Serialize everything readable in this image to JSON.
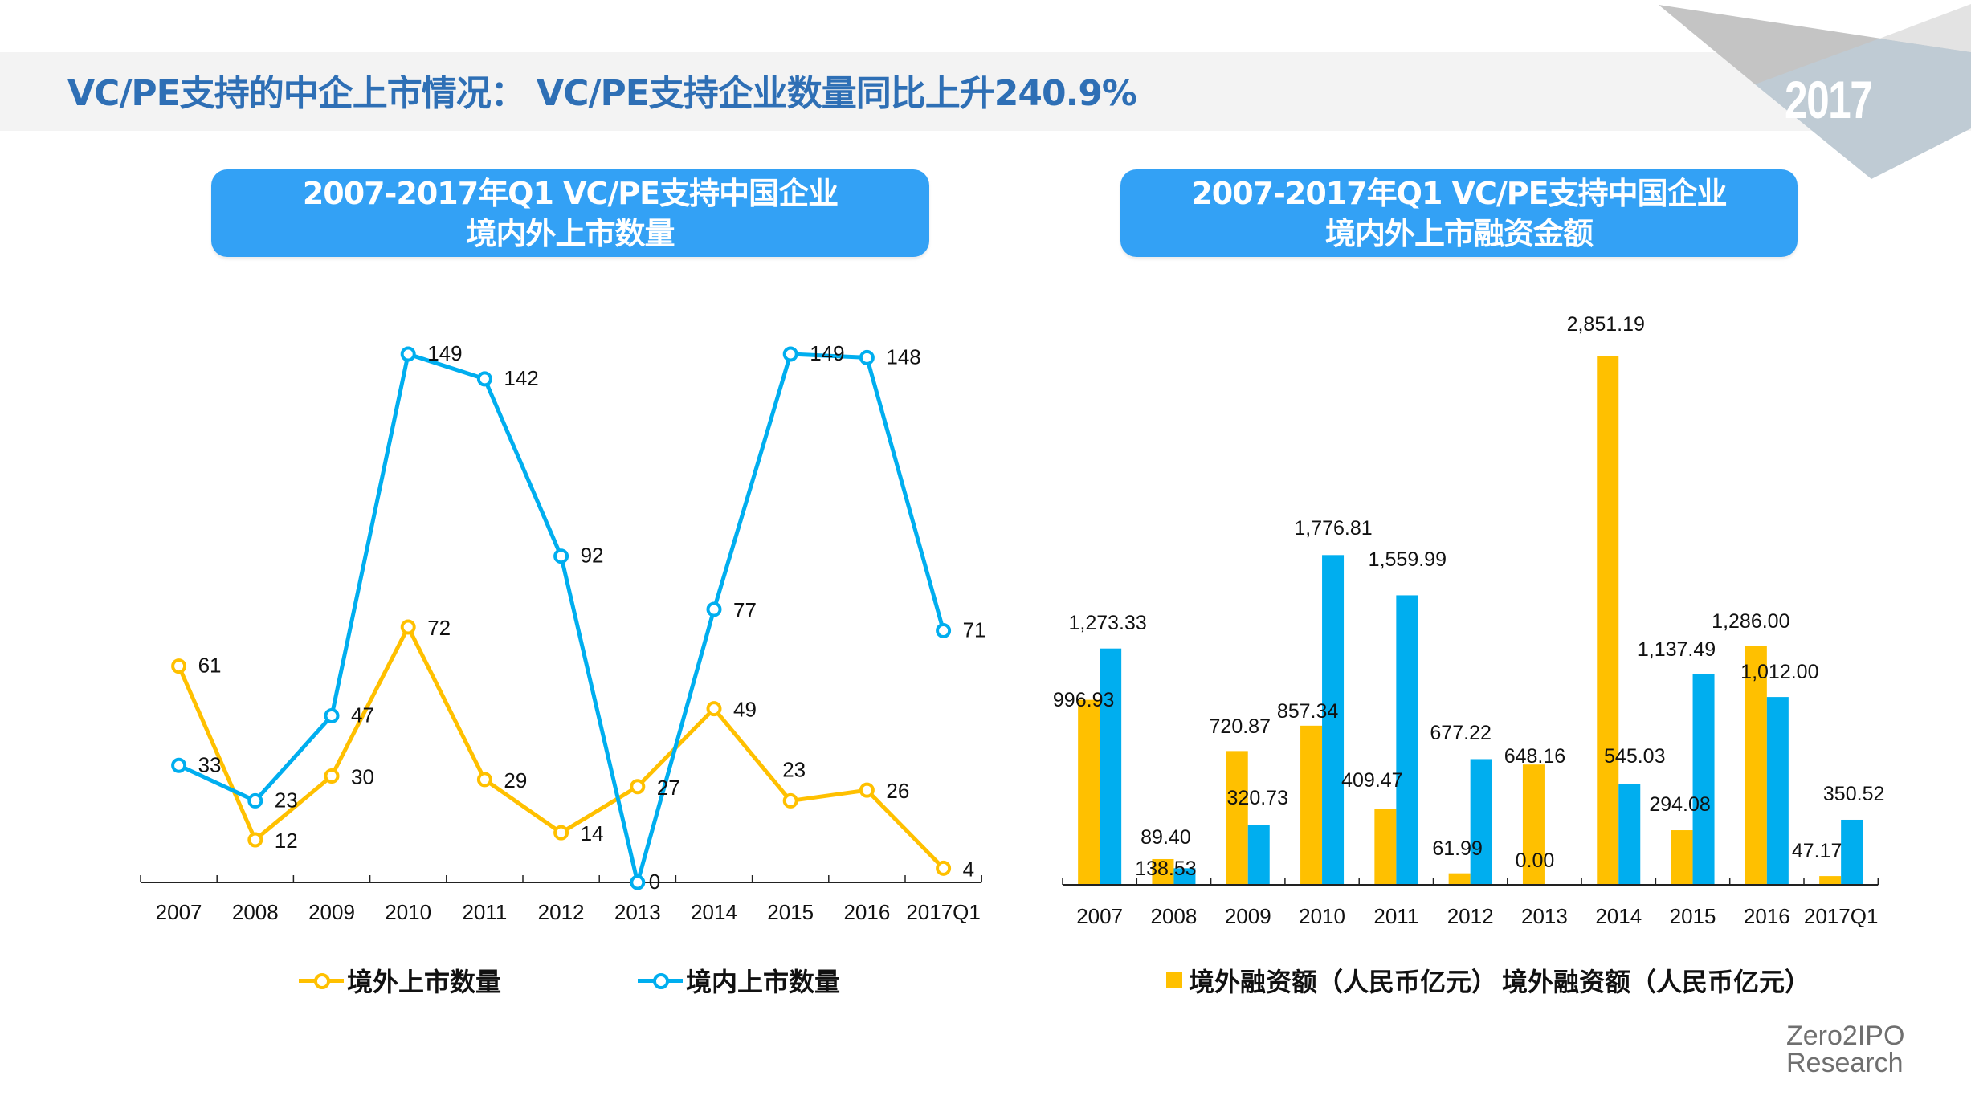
{
  "header": {
    "title": "VC/PE支持的中企上市情况： VC/PE支持企业数量同比上升240.9%",
    "year_badge": "2017"
  },
  "colors": {
    "title": "#2e6fb5",
    "title_box": "#33a1f5",
    "overseas": "#ffc000",
    "domestic": "#00aeef"
  },
  "logo": {
    "line1": "Zero2IPO",
    "line2": "Research"
  },
  "chart_data": [
    {
      "type": "line",
      "title_line1": "2007-2017年Q1 VC/PE支持中国企业",
      "title_line2": "境内外上市数量",
      "xlabel": "",
      "ylabel": "",
      "categories": [
        "2007",
        "2008",
        "2009",
        "2010",
        "2011",
        "2012",
        "2013",
        "2014",
        "2015",
        "2016",
        "2017Q1"
      ],
      "series": [
        {
          "name": "境外上市数量",
          "color": "#ffc000",
          "values": [
            61,
            12,
            30,
            72,
            29,
            14,
            27,
            49,
            23,
            26,
            4
          ]
        },
        {
          "name": "境内上市数量",
          "color": "#00aeef",
          "values": [
            33,
            23,
            47,
            149,
            142,
            92,
            0,
            77,
            149,
            148,
            71
          ]
        }
      ],
      "ylim": [
        0,
        149
      ],
      "grid": false,
      "legend": "bottom"
    },
    {
      "type": "bar",
      "title_line1": "2007-2017年Q1 VC/PE支持中国企业",
      "title_line2": "境内外上市融资金额",
      "xlabel": "",
      "ylabel": "",
      "categories": [
        "2007",
        "2008",
        "2009",
        "2010",
        "2011",
        "2012",
        "2013",
        "2014",
        "2015",
        "2016",
        "2017Q1"
      ],
      "series": [
        {
          "name": "境外融资额（人民币亿元）",
          "color": "#ffc000",
          "values": [
            996.93,
            138.53,
            720.87,
            857.34,
            409.47,
            61.99,
            648.16,
            2851.19,
            294.08,
            1286.0,
            47.17
          ],
          "labels": [
            "996.93",
            "138.53",
            "720.87",
            "857.34",
            "409.47",
            "61.99",
            "648.16",
            "2,851.19",
            "294.08",
            "1,286.00",
            "47.17"
          ]
        },
        {
          "name": "境外融资额（人民币亿元）",
          "color": "#00aeef",
          "values": [
            1273.33,
            89.4,
            320.73,
            1776.81,
            1559.99,
            677.22,
            0.0,
            545.03,
            1137.49,
            1012.0,
            350.52
          ],
          "labels": [
            "1,273.33",
            "89.40",
            "320.73",
            "1,776.81",
            "1,559.99",
            "677.22",
            "0.00",
            "545.03",
            "1,137.49",
            "1,012.00",
            "350.52"
          ]
        }
      ],
      "ylim": [
        0,
        2851.19
      ],
      "grid": false,
      "legend": "bottom"
    }
  ]
}
